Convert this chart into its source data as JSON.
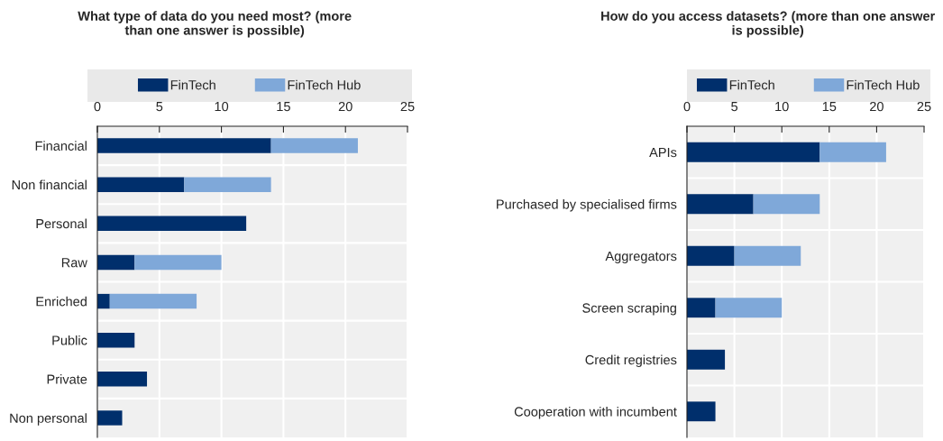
{
  "chart_data": [
    {
      "type": "bar",
      "orientation": "horizontal",
      "stacked": true,
      "title": "What type of data do you need most? (more\nthan one answer is possible)",
      "categories": [
        "Financial",
        "Non financial",
        "Personal",
        "Raw",
        "Enriched",
        "Public",
        "Private",
        "Non personal"
      ],
      "series": [
        {
          "name": "FinTech",
          "color": "#002f6c",
          "values": [
            14,
            7,
            12,
            3,
            1,
            3,
            4,
            2
          ]
        },
        {
          "name": "FinTech Hub",
          "color": "#7fa8d9",
          "values": [
            7,
            7,
            null,
            7,
            7,
            null,
            null,
            null
          ]
        }
      ],
      "xlim": [
        0,
        25
      ],
      "xticks": [
        0,
        5,
        10,
        15,
        20,
        25
      ],
      "grid": true,
      "legend": "top"
    },
    {
      "type": "bar",
      "orientation": "horizontal",
      "stacked": true,
      "title": "How do you access datasets? (more than one answer\nis possible)",
      "categories": [
        "APIs",
        "Purchased by specialised firms",
        "Aggregators",
        "Screen scraping",
        "Credit registries",
        "Cooperation with incumbent"
      ],
      "series": [
        {
          "name": "FinTech",
          "color": "#002f6c",
          "values": [
            14,
            7,
            5,
            3,
            4,
            3
          ]
        },
        {
          "name": "FinTech Hub",
          "color": "#7fa8d9",
          "values": [
            7,
            7,
            7,
            7,
            null,
            null
          ]
        }
      ],
      "xlim": [
        0,
        25
      ],
      "xticks": [
        0,
        5,
        10,
        15,
        20,
        25
      ],
      "grid": true,
      "legend": "top"
    }
  ]
}
